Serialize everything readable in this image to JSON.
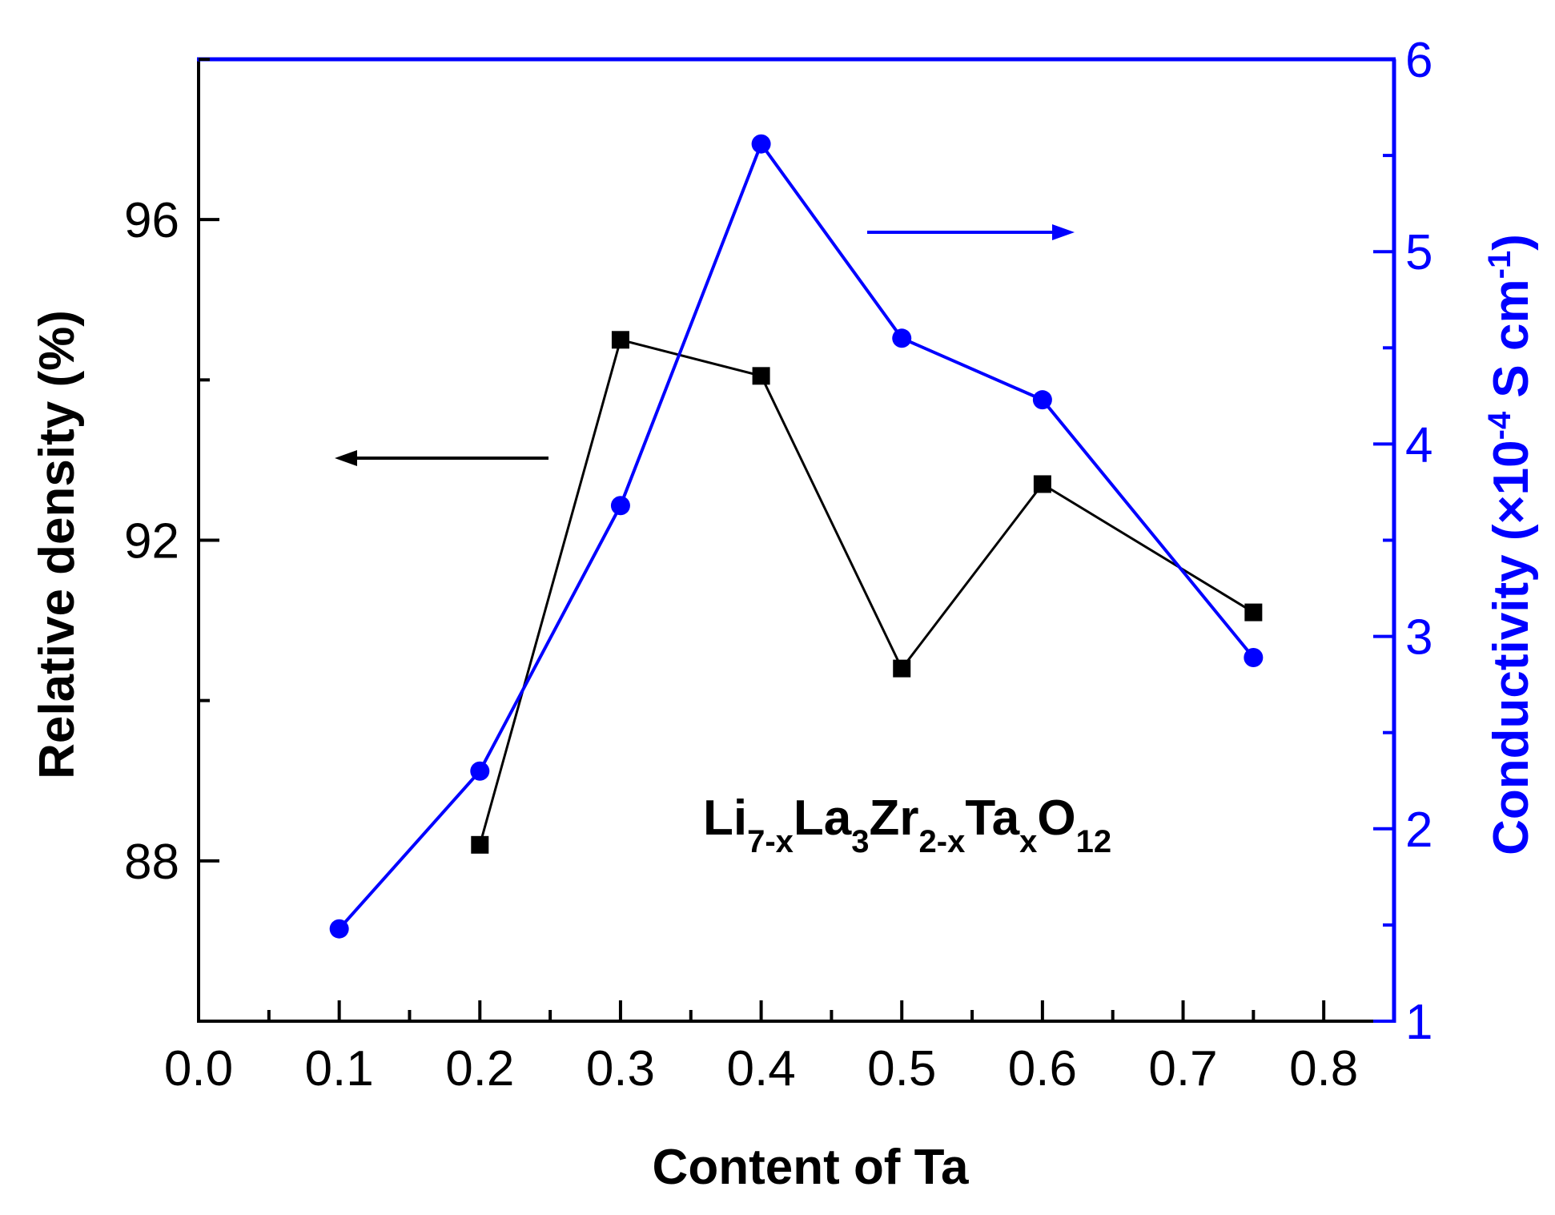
{
  "chart_data": {
    "type": "line",
    "xlabel": "Content of Ta",
    "xlim": [
      0.0,
      0.85
    ],
    "xticks": [
      "0.0",
      "0.1",
      "0.2",
      "0.3",
      "0.4",
      "0.5",
      "0.6",
      "0.7",
      "0.8"
    ],
    "y_left": {
      "label": "Relative density (%)",
      "lim": [
        86,
        98
      ],
      "ticks": [
        "88",
        "92",
        "96"
      ],
      "color": "#000000"
    },
    "y_right": {
      "label_parts": [
        "Conductivity (×10",
        "-4",
        " S cm",
        "-1",
        ")"
      ],
      "lim": [
        1,
        6
      ],
      "ticks": [
        "1",
        "2",
        "3",
        "4",
        "5",
        "6"
      ],
      "color": "#0000ff"
    },
    "series": [
      {
        "axis": "left",
        "marker": "square",
        "color": "#000000",
        "x": [
          0.2,
          0.3,
          0.4,
          0.5,
          0.6,
          0.75
        ],
        "values": [
          88.2,
          94.5,
          94.05,
          90.4,
          92.7,
          91.1
        ]
      },
      {
        "axis": "right",
        "marker": "circle",
        "color": "#0000ff",
        "x": [
          0.1,
          0.2,
          0.3,
          0.4,
          0.5,
          0.6,
          0.75
        ],
        "values": [
          1.48,
          2.3,
          3.68,
          5.56,
          4.55,
          4.23,
          2.89
        ]
      }
    ],
    "annotation": {
      "parts": [
        {
          "t": "Li",
          "sub": false
        },
        {
          "t": "7-x",
          "sub": true
        },
        {
          "t": "La",
          "sub": false
        },
        {
          "t": "3",
          "sub": true
        },
        {
          "t": "Zr",
          "sub": false
        },
        {
          "t": "2-x",
          "sub": true
        },
        {
          "t": "Ta",
          "sub": false
        },
        {
          "t": "x",
          "sub": true
        },
        {
          "t": "O",
          "sub": false
        },
        {
          "t": "12",
          "sub": true
        }
      ]
    },
    "arrows": [
      {
        "axis": "left",
        "direction": "left",
        "color": "#000000"
      },
      {
        "axis": "right",
        "direction": "right",
        "color": "#0000ff"
      }
    ],
    "grid": false
  }
}
